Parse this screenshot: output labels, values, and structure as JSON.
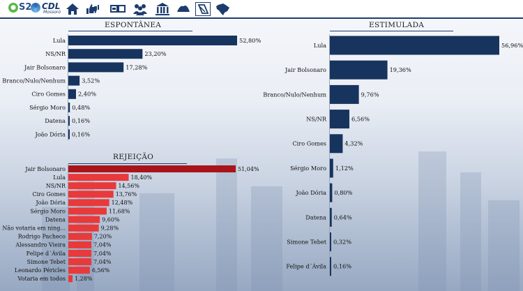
{
  "header": {
    "logo_s2_text": "S2",
    "logo_cdl_text": "CDL",
    "logo_cdl_sub": "Mossoró",
    "nav_icons": [
      "home-icon",
      "thumbs-up-down-icon",
      "ballot-icon",
      "people-icon",
      "government-building-icon",
      "graduation-icon",
      "document-icon",
      "brazil-map-icon"
    ]
  },
  "colors": {
    "primary_bar": "#17345f",
    "rejection_top": "#a8141a",
    "rejection_bar": "#e8393b"
  },
  "chart_data": [
    {
      "id": "espontanea",
      "type": "bar",
      "orientation": "horizontal",
      "title": "ESPONTÂNEA",
      "categories": [
        "Lula",
        "NS/NR",
        "Jair Bolsonaro",
        "Branco/Nulo/Nenhum",
        "Ciro Gomes",
        "Sérgio Moro",
        "Datena",
        "João Dória"
      ],
      "values": [
        52.8,
        23.2,
        17.28,
        3.52,
        2.4,
        0.48,
        0.16,
        0.16
      ],
      "labels": [
        "52,80%",
        "23,20%",
        "17,28%",
        "3,52%",
        "2,40%",
        "0,48%",
        "0,16%",
        "0,16%"
      ],
      "xlim": [
        0,
        52.8
      ]
    },
    {
      "id": "rejeicao",
      "type": "bar",
      "orientation": "horizontal",
      "title": "REJEIÇÃO",
      "categories": [
        "Jair Bolsonaro",
        "Lula",
        "NS/NR",
        "Ciro Gomes",
        "João Dória",
        "Sérgio Moro",
        "Datena",
        "Não votaria em ning...",
        "Rodrigo Pacheco",
        "Alessandro Vieira",
        "Felipe d´Ávila",
        "Simone Tebet",
        "Leonardo Péricles",
        "Votaria em todos"
      ],
      "values": [
        51.04,
        18.4,
        14.56,
        13.76,
        12.48,
        11.68,
        9.6,
        9.28,
        7.2,
        7.04,
        7.04,
        7.04,
        6.56,
        1.28
      ],
      "labels": [
        "51,04%",
        "18,40%",
        "14,56%",
        "13,76%",
        "12,48%",
        "11,68%",
        "9,60%",
        "9,28%",
        "7,20%",
        "7,04%",
        "7,04%",
        "7,04%",
        "6,56%",
        "1,28%"
      ],
      "xlim": [
        0,
        51.04
      ]
    },
    {
      "id": "estimulada",
      "type": "bar",
      "orientation": "horizontal",
      "title": "ESTIMULADA",
      "categories": [
        "Lula",
        "Jair Bolsonaro",
        "Branco/Nulo/Nenhum",
        "NS/NR",
        "Ciro Gomes",
        "Sérgio Moro",
        "João Dória",
        "Datena",
        "Simone Tebet",
        "Felipe d´Ávila"
      ],
      "values": [
        56.96,
        19.36,
        9.76,
        6.56,
        4.32,
        1.12,
        0.8,
        0.64,
        0.32,
        0.16
      ],
      "labels": [
        "56,96%",
        "19,36%",
        "9,76%",
        "6,56%",
        "4,32%",
        "1,12%",
        "0,80%",
        "0,64%",
        "0,32%",
        "0,16%"
      ],
      "xlim": [
        0,
        56.96
      ]
    }
  ]
}
